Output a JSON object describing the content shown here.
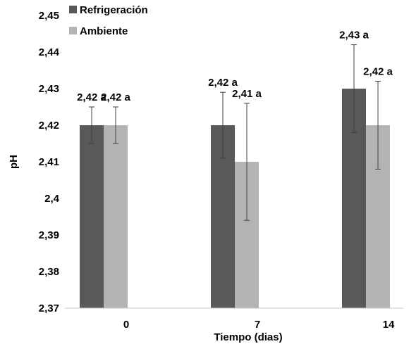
{
  "chart_data": {
    "type": "bar",
    "xlabel": "Tiempo (dias)",
    "ylabel": "pH",
    "categories": [
      "0",
      "7",
      "14"
    ],
    "ylim": [
      2.37,
      2.45
    ],
    "yticks": [
      "2,37",
      "2,38",
      "2,39",
      "2,4",
      "2,41",
      "2,42",
      "2,43",
      "2,44",
      "2,45"
    ],
    "grid": false,
    "legend_position": "top-left",
    "series": [
      {
        "name": "Refrigeración",
        "color": "#595959",
        "values": [
          2.42,
          2.42,
          2.43
        ],
        "errors": [
          0.005,
          0.009,
          0.012
        ],
        "labels": [
          "2,42 a",
          "2,42 a",
          "2,43 a"
        ]
      },
      {
        "name": "Ambiente",
        "color": "#b3b3b3",
        "values": [
          2.42,
          2.41,
          2.42
        ],
        "errors": [
          0.005,
          0.016,
          0.012
        ],
        "labels": [
          "2,42 a",
          "2,41 a",
          "2,42 a"
        ]
      }
    ]
  }
}
